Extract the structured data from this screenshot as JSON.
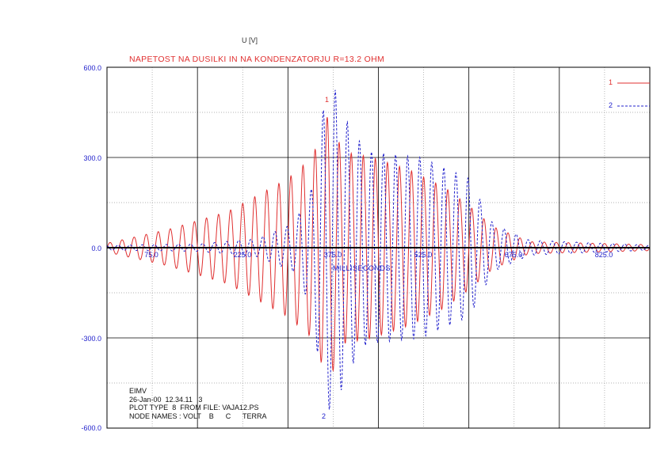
{
  "chart_data": {
    "type": "line",
    "title": "NAPETOST NA DUSILKI IN NA KONDENZATORJU R=13.2 OHM",
    "ylabel": "U [V]",
    "xlabel": "MILLISECONDS",
    "xlim": [
      0,
      900
    ],
    "ylim": [
      -600,
      600
    ],
    "y_ticks": [
      "600.0",
      "300.0",
      "0.0",
      "-300.0",
      "-600.0"
    ],
    "x_ticks": [
      "75.0",
      "225.0",
      "375.0",
      "525.0",
      "675.0",
      "825.0"
    ],
    "grid": true,
    "legend_position": "top-right",
    "series": [
      {
        "name": "1",
        "color": "#e03030",
        "style": "solid",
        "frequency_hz": 50,
        "envelope": [
          [
            0,
            15
          ],
          [
            100,
            60
          ],
          [
            200,
            120
          ],
          [
            300,
            230
          ],
          [
            340,
            300
          ],
          [
            355,
            380
          ],
          [
            368,
            450
          ],
          [
            390,
            320
          ],
          [
            440,
            300
          ],
          [
            500,
            260
          ],
          [
            560,
            200
          ],
          [
            600,
            140
          ],
          [
            640,
            70
          ],
          [
            700,
            20
          ],
          [
            900,
            10
          ]
        ]
      },
      {
        "name": "2",
        "color": "#2222cc",
        "style": "dashed",
        "frequency_hz": 50,
        "envelope": [
          [
            0,
            8
          ],
          [
            150,
            12
          ],
          [
            250,
            30
          ],
          [
            310,
            80
          ],
          [
            340,
            200
          ],
          [
            352,
            400
          ],
          [
            360,
            470
          ],
          [
            370,
            550
          ],
          [
            380,
            520
          ],
          [
            400,
            410
          ],
          [
            430,
            320
          ],
          [
            520,
            300
          ],
          [
            600,
            230
          ],
          [
            640,
            80
          ],
          [
            700,
            25
          ],
          [
            900,
            8
          ]
        ]
      }
    ],
    "annotations": [
      "1",
      "2"
    ]
  },
  "info_lines": [
    "EIMV",
    "26-Jan-00  12.34.11   3",
    "PLOT TYPE  8  FROM FILE: VAJA12.PS",
    "NODE NAMES : VOLT    B      C      TERRA"
  ]
}
